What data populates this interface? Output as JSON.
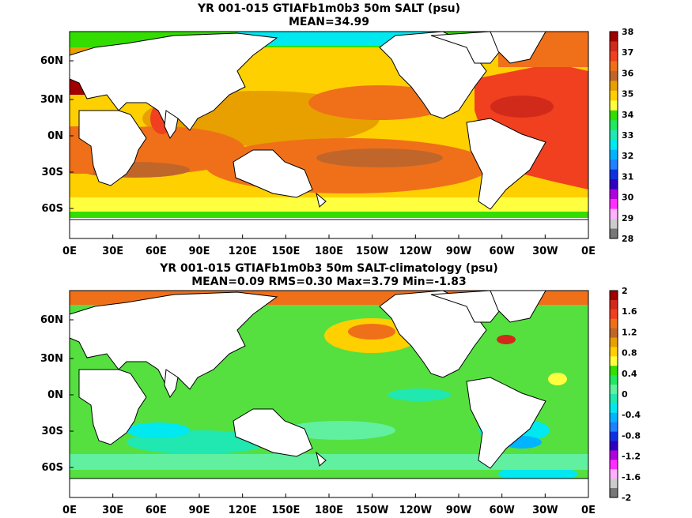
{
  "maps": [
    {
      "title_line1": "YR 001-015 GTIAFb1m0b3 50m SALT (psu)",
      "title_line2": "MEAN=34.99",
      "lat_labels": [
        "60N",
        "30N",
        "0N",
        "30S",
        "60S"
      ],
      "lon_labels": [
        "0E",
        "30E",
        "60E",
        "90E",
        "120E",
        "150E",
        "180E",
        "150W",
        "120W",
        "90W",
        "60W",
        "30W",
        "0E"
      ],
      "colorbar_labels": [
        "38",
        "37",
        "36",
        "35",
        "34",
        "33",
        "32",
        "31",
        "30",
        "29",
        "28"
      ],
      "colorbar_colors": [
        "#a00000",
        "#d22a1a",
        "#f04020",
        "#f0701a",
        "#c0662a",
        "#e8a000",
        "#ffd000",
        "#ffff40",
        "#33dd00",
        "#20e860",
        "#20e8b0",
        "#00e8f0",
        "#00b4ff",
        "#2080ff",
        "#1030e0",
        "#3000c0",
        "#b000e0",
        "#ff30ff",
        "#ffb0ff",
        "#cccccc",
        "#777777"
      ]
    },
    {
      "title_line1": "YR 001-015 GTIAFb1m0b3 50m SALT-climatology (psu)",
      "title_line2": "MEAN=0.09   RMS=0.30   Max=3.79   Min=-1.83",
      "lat_labels": [
        "60N",
        "30N",
        "0N",
        "30S",
        "60S"
      ],
      "lon_labels": [
        "0E",
        "30E",
        "60E",
        "90E",
        "120E",
        "150E",
        "180E",
        "150W",
        "120W",
        "90W",
        "60W",
        "30W",
        "0E"
      ],
      "colorbar_labels": [
        "2",
        "1.6",
        "1.2",
        "0.8",
        "0.4",
        "0",
        "-0.4",
        "-0.8",
        "-1.2",
        "-1.6",
        "-2"
      ],
      "colorbar_colors": [
        "#a00000",
        "#d22a1a",
        "#f04020",
        "#f0701a",
        "#c0662a",
        "#e8a000",
        "#ffd000",
        "#ffff40",
        "#33dd00",
        "#20e860",
        "#60f0a0",
        "#20e8b0",
        "#00e8f0",
        "#00b4ff",
        "#2080ff",
        "#1030e0",
        "#3000c0",
        "#b000e0",
        "#ff30ff",
        "#ffb0ff",
        "#cccccc",
        "#777777"
      ]
    }
  ],
  "colors": {
    "land": "#ffffff",
    "coast": "#000000",
    "map1_base": "#ffd000",
    "map2_base": "#55e040"
  }
}
